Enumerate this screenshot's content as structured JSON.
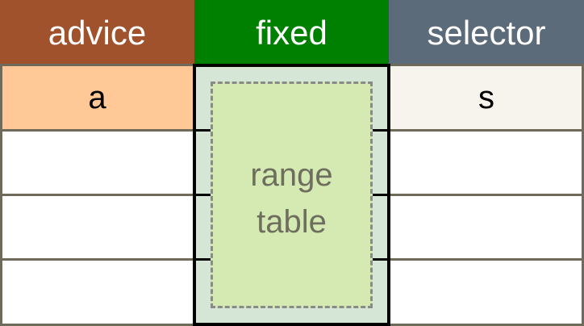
{
  "columns": [
    {
      "header": "advice",
      "value": "a"
    },
    {
      "header": "fixed",
      "value": ""
    },
    {
      "header": "selector",
      "value": "s"
    }
  ],
  "range_table": {
    "line1": "range",
    "line2": "table"
  },
  "colors": {
    "advice_header": "#a0522d",
    "fixed_header": "#008000",
    "selector_header": "#5c6b7a",
    "advice_cell": "#ffc896",
    "fixed_column": "#d6e6d6",
    "selector_cell": "#f7f4ee",
    "range_box": "#d4eab2"
  }
}
